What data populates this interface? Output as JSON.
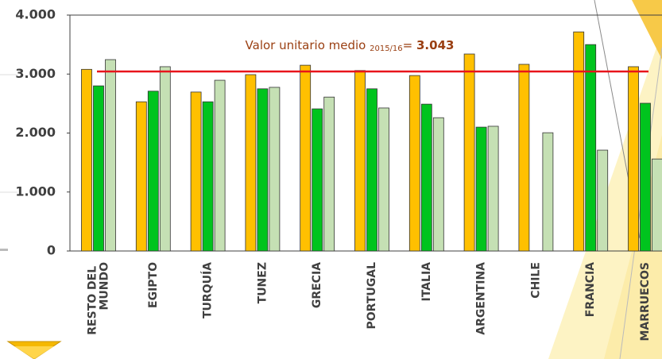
{
  "chart_data": {
    "type": "bar",
    "categories": [
      "RESTO DEL MUNDO",
      "EGIPTO",
      "TURQUÍA",
      "TUNEZ",
      "GRECIA",
      "PORTUGAL",
      "ITALIA",
      "ARGENTINA",
      "CHILE",
      "FRANCIA",
      "MARRUECOS"
    ],
    "series": [
      {
        "color": "#ffc000",
        "values": [
          3080,
          2530,
          2695,
          2990,
          3150,
          3060,
          2975,
          3340,
          3165,
          3715,
          3125
        ]
      },
      {
        "color": "#00c41e",
        "values": [
          2800,
          2710,
          2530,
          2750,
          2410,
          2750,
          2490,
          2100,
          null,
          3500,
          2505
        ]
      },
      {
        "color": "#c5e0b4",
        "values": [
          3245,
          3125,
          2895,
          2775,
          2610,
          2425,
          2260,
          2115,
          2005,
          1710,
          1560
        ]
      }
    ],
    "ylim": [
      0,
      4000
    ],
    "yticks": [
      0,
      {
        "value": 1000,
        "label": "1.000"
      },
      {
        "value": 2000,
        "label": "2.000"
      },
      {
        "value": 3000,
        "label": "3.000"
      },
      {
        "value": 4000,
        "label": "4.000"
      }
    ],
    "reference_line": {
      "value": 3043,
      "color": "#e8141b"
    },
    "annotation": {
      "text": "Valor unitario medio ",
      "subscript": "2015/16",
      "equals": "= ",
      "value": 3043,
      "label": "3.043"
    }
  }
}
